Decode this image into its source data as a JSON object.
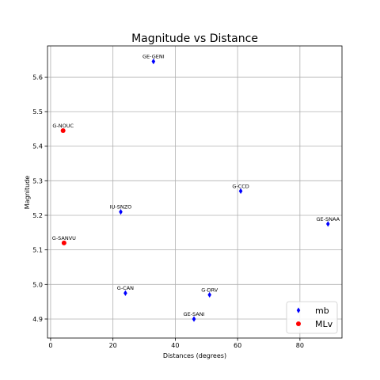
{
  "chart_data": {
    "type": "scatter",
    "title": "Magnitude vs Distance",
    "xlabel": "Distances (degrees)",
    "ylabel": "Magnitude",
    "xlim": [
      -1,
      93.5
    ],
    "ylim": [
      4.845,
      5.69
    ],
    "xticks": [
      0,
      20,
      40,
      60,
      80
    ],
    "yticks": [
      4.9,
      5.0,
      5.1,
      5.2,
      5.3,
      5.4,
      5.5,
      5.6
    ],
    "ytick_labels": [
      "4.9",
      "5.0",
      "5.1",
      "5.2",
      "5.3",
      "5.4",
      "5.5",
      "5.6"
    ],
    "grid": true,
    "legend_position": "bottom-right",
    "series": [
      {
        "name": "mb",
        "marker": "diamond",
        "color": "#0000ff",
        "points": [
          {
            "x": 33,
            "y": 5.645,
            "label": "GE-GENI"
          },
          {
            "x": 61,
            "y": 5.27,
            "label": "G-CCD"
          },
          {
            "x": 22.5,
            "y": 5.21,
            "label": "IU-SNZO"
          },
          {
            "x": 89,
            "y": 5.175,
            "label": "GE-SNAA"
          },
          {
            "x": 24,
            "y": 4.975,
            "label": "G-CAN"
          },
          {
            "x": 51,
            "y": 4.97,
            "label": "G-DRV"
          },
          {
            "x": 46,
            "y": 4.9,
            "label": "GE-SANI"
          }
        ]
      },
      {
        "name": "MLv",
        "marker": "circle",
        "color": "#ff0000",
        "points": [
          {
            "x": 4,
            "y": 5.445,
            "label": "G-NOUC"
          },
          {
            "x": 4.3,
            "y": 5.12,
            "label": "G-SANVU"
          }
        ]
      }
    ]
  }
}
